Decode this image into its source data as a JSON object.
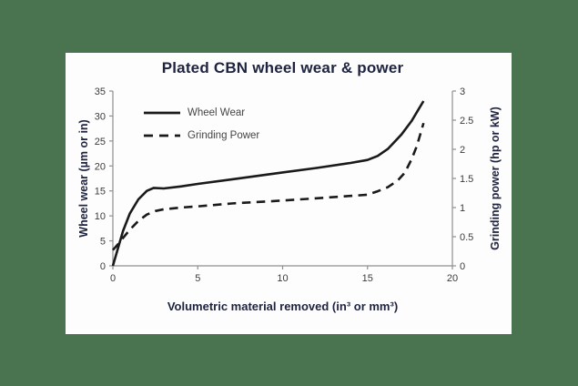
{
  "window": {
    "background_color": "#4a7350",
    "panel_color": "#fdfdfd"
  },
  "colors": {
    "title": "#1e2340",
    "axis_label": "#1e2340",
    "tick_text": "#3b3b3b",
    "axis_line": "#8f8f8f",
    "series_line": "#1a1a1a",
    "legend_text": "#454545"
  },
  "chart_data": {
    "type": "line",
    "title": "Plated CBN wheel wear & power",
    "xlabel": "Volumetric material removed (in³ or mm³)",
    "ylabel_left": "Wheel wear (µm or in)",
    "ylabel_right": "Grinding power (hp or kW)",
    "xlim": [
      0,
      20
    ],
    "ylim_left": [
      0,
      35
    ],
    "ylim_right": [
      0,
      3
    ],
    "x_ticks": [
      "0",
      "5",
      "10",
      "15",
      "20"
    ],
    "y_left_ticks": [
      "0",
      "5",
      "10",
      "15",
      "20",
      "25",
      "30",
      "35"
    ],
    "y_right_ticks": [
      "0",
      "0.5",
      "1",
      "1.5",
      "2",
      "2.5",
      "3"
    ],
    "grid": false,
    "legend_position": "inside-top-left",
    "series": [
      {
        "name": "Wheel Wear",
        "axis": "left",
        "style": "solid",
        "x": [
          0,
          0.3,
          0.6,
          1.0,
          1.5,
          2.0,
          2.4,
          3.0,
          4.0,
          5.0,
          7.0,
          10.0,
          12.0,
          14.0,
          15.0,
          15.6,
          16.2,
          17.0,
          17.6,
          18.0,
          18.3
        ],
        "y": [
          0,
          3.5,
          7.0,
          10.5,
          13.3,
          15.0,
          15.6,
          15.5,
          15.9,
          16.4,
          17.3,
          18.7,
          19.6,
          20.6,
          21.2,
          22.0,
          23.4,
          26.3,
          29.0,
          31.3,
          33.0
        ]
      },
      {
        "name": "Grinding Power",
        "axis": "right",
        "style": "dashed",
        "x": [
          0,
          0.3,
          0.6,
          1.0,
          1.5,
          2.0,
          2.5,
          3.0,
          4.0,
          5.0,
          7.0,
          10.0,
          12.0,
          14.0,
          15.0,
          15.6,
          16.2,
          16.8,
          17.2,
          17.6,
          17.9,
          18.1,
          18.3
        ],
        "y": [
          0.27,
          0.37,
          0.48,
          0.62,
          0.77,
          0.88,
          0.94,
          0.97,
          1.0,
          1.02,
          1.07,
          1.12,
          1.16,
          1.2,
          1.22,
          1.28,
          1.35,
          1.47,
          1.6,
          1.83,
          2.05,
          2.25,
          2.45
        ]
      }
    ]
  }
}
